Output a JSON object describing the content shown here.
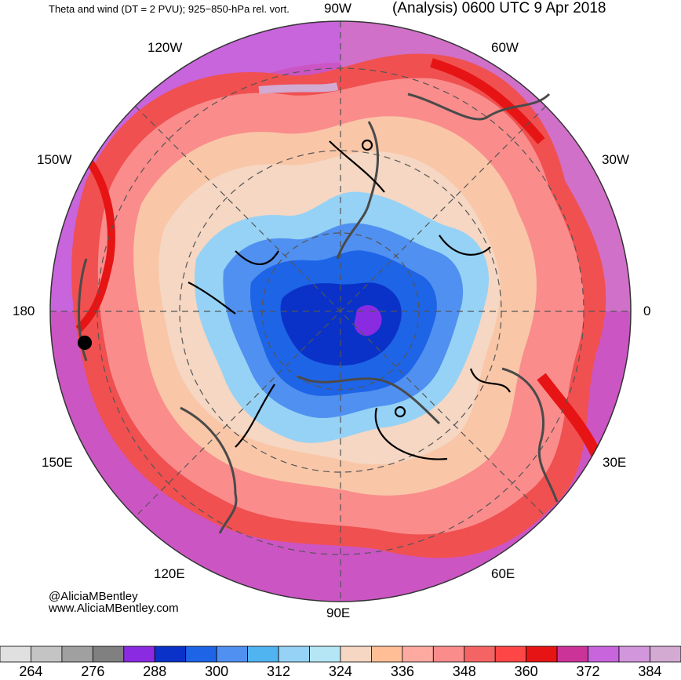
{
  "header": {
    "left_title": "Theta and wind (DT = 2 PVU); 925−850-hPa rel. vort.",
    "right_title": "(Analysis) 0600 UTC 9 Apr 2018"
  },
  "longitude_labels": {
    "n": "90W",
    "nw": "120W",
    "ne": "60W",
    "wnw": "150W",
    "ene": "30W",
    "w": "180",
    "e": "0",
    "wsw": "150E",
    "ese": "30E",
    "sw": "120E",
    "se": "60E",
    "s": "90E"
  },
  "credits": {
    "twitter": "@AliciaMBentley",
    "website": "www.AliciaMBentley.com"
  },
  "colorbar": {
    "colors": [
      "#e0e0e0",
      "#c4c4c4",
      "#a0a0a0",
      "#808080",
      "#8a2be2",
      "#0a32c8",
      "#1e64e6",
      "#5090f0",
      "#50b4f0",
      "#96d2f5",
      "#b4e6f5",
      "#f5d7c3",
      "#ffbe96",
      "#ffaaa0",
      "#fa8c8c",
      "#f56464",
      "#ff4646",
      "#e61414",
      "#cc3399",
      "#c864dc",
      "#d296dc",
      "#d2aad2"
    ],
    "labels": [
      "264",
      "276",
      "288",
      "300",
      "312",
      "324",
      "336",
      "348",
      "360",
      "372",
      "384"
    ]
  }
}
